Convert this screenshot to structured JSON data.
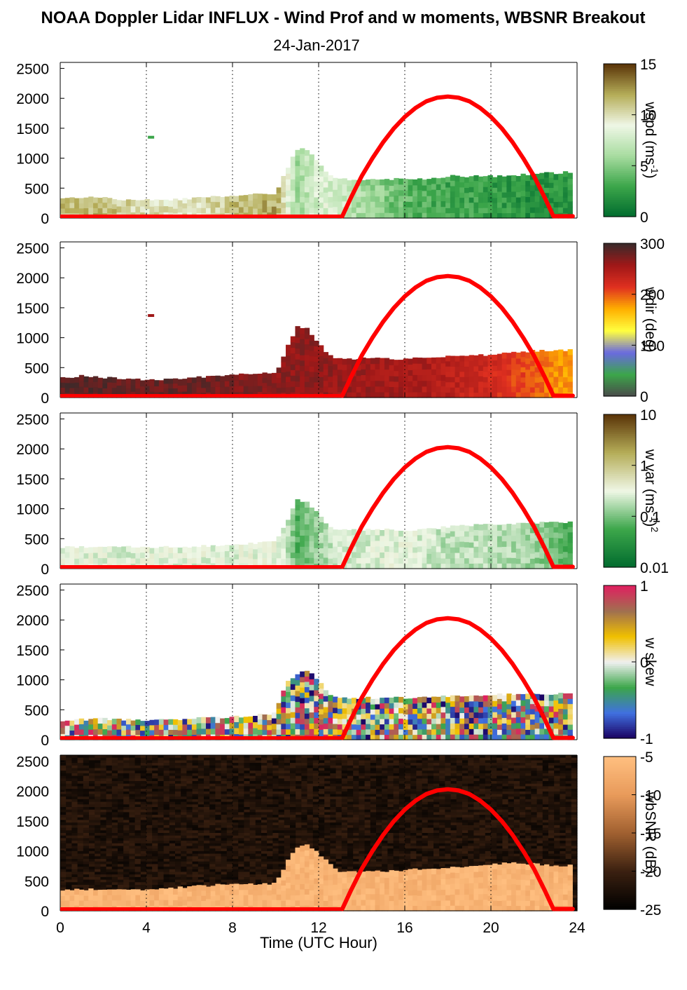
{
  "title": "NOAA Doppler Lidar INFLUX - Wind Prof and w moments, WBSNR Breakout",
  "subtitle": "24-Jan-2017",
  "xlabel": "Time (UTC Hour)",
  "x_ticks": [
    "0",
    "4",
    "8",
    "12",
    "16",
    "20",
    "24"
  ],
  "y_ticks": [
    "0",
    "500",
    "1000",
    "1500",
    "2000",
    "2500"
  ],
  "colors": {
    "sun_curve": "#ff0000",
    "wspd_map": [
      "#006b2e",
      "#3ca64a",
      "#a8dca0",
      "#eff7e6",
      "#b5ad58",
      "#5a3408"
    ],
    "wdir_map": [
      "#4a4a4a",
      "#3ca64a",
      "#6a6ae0",
      "#ffff40",
      "#ffb000",
      "#e03020",
      "#a01818",
      "#3a2a2a"
    ],
    "wvar_map": [
      "#006b2e",
      "#3ca64a",
      "#eff7e6",
      "#b5ad58",
      "#5a3408"
    ],
    "wskew_map": [
      "#1a0060",
      "#4070e0",
      "#3ca64a",
      "#f0f0f0",
      "#f0c000",
      "#a07050",
      "#e02060"
    ],
    "wbsnr_map": [
      "#000000",
      "#3a2010",
      "#a06030",
      "#e89a5a",
      "#ffbf80"
    ]
  },
  "chart_data": [
    {
      "type": "heatmap",
      "name": "wspd",
      "colorbar_label": "wspd (ms",
      "colorbar_sup": "-1",
      "colorbar_suffix": ")",
      "colorbar_ticks": [
        "0",
        "5",
        "10",
        "15"
      ],
      "clim": [
        0,
        15
      ],
      "xlim": [
        0,
        24
      ],
      "ylim": [
        0,
        2600
      ],
      "vertical_gridlines_at": [
        4,
        8,
        12,
        16,
        20,
        24
      ],
      "top_height_m": [
        [
          0,
          320
        ],
        [
          1,
          350
        ],
        [
          2,
          340
        ],
        [
          3,
          300
        ],
        [
          4,
          300
        ],
        [
          5,
          300
        ],
        [
          6,
          330
        ],
        [
          7,
          360
        ],
        [
          8,
          380
        ],
        [
          9,
          400
        ],
        [
          10,
          400
        ],
        [
          10.5,
          800
        ],
        [
          11,
          1150
        ],
        [
          11.5,
          1150
        ],
        [
          12,
          900
        ],
        [
          12.5,
          700
        ],
        [
          13,
          650
        ],
        [
          14,
          650
        ],
        [
          15,
          650
        ],
        [
          16,
          650
        ],
        [
          17,
          650
        ],
        [
          18,
          700
        ],
        [
          19,
          700
        ],
        [
          20,
          700
        ],
        [
          21,
          700
        ],
        [
          22,
          750
        ],
        [
          23,
          750
        ],
        [
          23.8,
          780
        ]
      ],
      "isolated_echo": {
        "x": 4.2,
        "height_m": 1350
      },
      "value_by_hour": [
        [
          0,
          11
        ],
        [
          2,
          11.5
        ],
        [
          4,
          10
        ],
        [
          6,
          9.5
        ],
        [
          8,
          11
        ],
        [
          10,
          12
        ],
        [
          11,
          6
        ],
        [
          12,
          8
        ],
        [
          13,
          8
        ],
        [
          14,
          6
        ],
        [
          15,
          5
        ],
        [
          16,
          4
        ],
        [
          18,
          3
        ],
        [
          20,
          2.5
        ],
        [
          22,
          2
        ],
        [
          23.8,
          2.5
        ]
      ]
    },
    {
      "type": "heatmap",
      "name": "wdir",
      "colorbar_label": "wdir (deg)",
      "colorbar_ticks": [
        "0",
        "100",
        "200",
        "300"
      ],
      "clim": [
        0,
        360
      ],
      "xlim": [
        0,
        24
      ],
      "ylim": [
        0,
        2600
      ],
      "vertical_gridlines_at": [
        4,
        8,
        12,
        16,
        20,
        24
      ],
      "top_height_m": [
        [
          0,
          330
        ],
        [
          1,
          360
        ],
        [
          2,
          340
        ],
        [
          3,
          300
        ],
        [
          4,
          300
        ],
        [
          5,
          300
        ],
        [
          6,
          330
        ],
        [
          7,
          360
        ],
        [
          8,
          380
        ],
        [
          9,
          400
        ],
        [
          10,
          400
        ],
        [
          10.5,
          800
        ],
        [
          11,
          1200
        ],
        [
          11.5,
          1150
        ],
        [
          12,
          900
        ],
        [
          12.5,
          700
        ],
        [
          13,
          650
        ],
        [
          14,
          650
        ],
        [
          15,
          650
        ],
        [
          16,
          650
        ],
        [
          17,
          650
        ],
        [
          18,
          700
        ],
        [
          19,
          700
        ],
        [
          20,
          720
        ],
        [
          21,
          750
        ],
        [
          22,
          780
        ],
        [
          23,
          780
        ],
        [
          23.8,
          800
        ]
      ],
      "isolated_echo": {
        "x": 4.2,
        "height_m": 1370
      },
      "value_by_hour": [
        [
          0,
          345
        ],
        [
          4,
          340
        ],
        [
          8,
          330
        ],
        [
          10,
          320
        ],
        [
          12,
          315
        ],
        [
          14,
          310
        ],
        [
          16,
          305
        ],
        [
          18,
          290
        ],
        [
          19,
          280
        ],
        [
          20,
          270
        ],
        [
          21,
          255
        ],
        [
          22,
          240
        ],
        [
          23,
          220
        ],
        [
          23.8,
          210
        ]
      ]
    },
    {
      "type": "heatmap",
      "name": "w var",
      "colorbar_label": "w var (ms",
      "colorbar_sup": "-1",
      "colorbar_suffix": ")",
      "colorbar_sup2": "2",
      "colorbar_ticks": [
        "0.01",
        "0.1",
        "1",
        "10"
      ],
      "clim": [
        0.01,
        10
      ],
      "colorbar_scale": "log",
      "xlim": [
        0,
        24
      ],
      "ylim": [
        0,
        2600
      ],
      "vertical_gridlines_at": [
        4,
        8,
        12,
        16,
        20,
        24
      ],
      "top_height_m": [
        [
          0,
          350
        ],
        [
          2,
          380
        ],
        [
          4,
          350
        ],
        [
          6,
          370
        ],
        [
          8,
          400
        ],
        [
          9,
          420
        ],
        [
          10,
          450
        ],
        [
          10.5,
          750
        ],
        [
          11,
          1150
        ],
        [
          11.5,
          1100
        ],
        [
          12,
          900
        ],
        [
          12.5,
          700
        ],
        [
          13,
          650
        ],
        [
          14,
          650
        ],
        [
          15,
          650
        ],
        [
          16,
          650
        ],
        [
          17,
          650
        ],
        [
          18,
          700
        ],
        [
          19,
          720
        ],
        [
          20,
          750
        ],
        [
          21,
          750
        ],
        [
          22,
          760
        ],
        [
          23,
          770
        ],
        [
          23.8,
          780
        ]
      ],
      "value_by_hour": [
        [
          0,
          0.3
        ],
        [
          4,
          0.3
        ],
        [
          8,
          0.3
        ],
        [
          10,
          0.35
        ],
        [
          11,
          0.07
        ],
        [
          12,
          0.15
        ],
        [
          13,
          0.25
        ],
        [
          16,
          0.3
        ],
        [
          18,
          0.2
        ],
        [
          20,
          0.2
        ],
        [
          22,
          0.15
        ],
        [
          23.8,
          0.05
        ]
      ]
    },
    {
      "type": "heatmap",
      "name": "w skew",
      "colorbar_label": "w skew",
      "colorbar_ticks": [
        "-1",
        "0",
        "1"
      ],
      "clim": [
        -1,
        1
      ],
      "xlim": [
        0,
        24
      ],
      "ylim": [
        0,
        2600
      ],
      "vertical_gridlines_at": [
        4,
        8,
        12,
        16,
        20,
        24
      ],
      "top_height_m": [
        [
          0,
          320
        ],
        [
          2,
          350
        ],
        [
          4,
          320
        ],
        [
          6,
          350
        ],
        [
          8,
          380
        ],
        [
          9,
          400
        ],
        [
          10,
          450
        ],
        [
          10.5,
          950
        ],
        [
          11,
          1100
        ],
        [
          11.5,
          1150
        ],
        [
          12,
          1000
        ],
        [
          12.5,
          750
        ],
        [
          13,
          700
        ],
        [
          14,
          700
        ],
        [
          15,
          700
        ],
        [
          16,
          700
        ],
        [
          17,
          720
        ],
        [
          18,
          720
        ],
        [
          19,
          740
        ],
        [
          20,
          750
        ],
        [
          21,
          760
        ],
        [
          22,
          760
        ],
        [
          23,
          770
        ],
        [
          23.8,
          780
        ]
      ]
    },
    {
      "type": "heatmap",
      "name": "wbSNR",
      "colorbar_label": "wbSNR (dB)",
      "colorbar_ticks": [
        "-25",
        "-20",
        "-15",
        "-10",
        "-5"
      ],
      "clim": [
        -25,
        -5
      ],
      "xlim": [
        0,
        24
      ],
      "ylim": [
        0,
        2600
      ],
      "vertical_gridlines_at": [
        4,
        8,
        12,
        16,
        20,
        24
      ],
      "top_height_m": [
        [
          0,
          350
        ],
        [
          2,
          360
        ],
        [
          4,
          360
        ],
        [
          6,
          400
        ],
        [
          8,
          450
        ],
        [
          9,
          450
        ],
        [
          10,
          450
        ],
        [
          10.5,
          800
        ],
        [
          11,
          1050
        ],
        [
          11.5,
          1100
        ],
        [
          12,
          950
        ],
        [
          12.5,
          800
        ],
        [
          13,
          650
        ],
        [
          14,
          650
        ],
        [
          15,
          660
        ],
        [
          16,
          680
        ],
        [
          17,
          700
        ],
        [
          18,
          720
        ],
        [
          19,
          740
        ],
        [
          20,
          780
        ],
        [
          21,
          800
        ],
        [
          22,
          780
        ],
        [
          23,
          760
        ],
        [
          23.8,
          760
        ]
      ]
    }
  ],
  "sun_curve": {
    "applies_to": "all panels",
    "type": "line",
    "x": [
      13.1,
      13.5,
      14,
      14.5,
      15,
      15.5,
      16,
      16.5,
      17,
      17.5,
      18,
      18.5,
      19,
      19.5,
      20,
      20.5,
      21,
      21.5,
      22,
      22.5,
      22.9,
      23.8
    ],
    "y": [
      30,
      340,
      700,
      1000,
      1270,
      1500,
      1690,
      1840,
      1950,
      2010,
      2030,
      2010,
      1950,
      1840,
      1690,
      1500,
      1270,
      1000,
      700,
      340,
      30,
      30
    ],
    "baseline": {
      "x": [
        0,
        13.1
      ],
      "y": 30
    }
  }
}
